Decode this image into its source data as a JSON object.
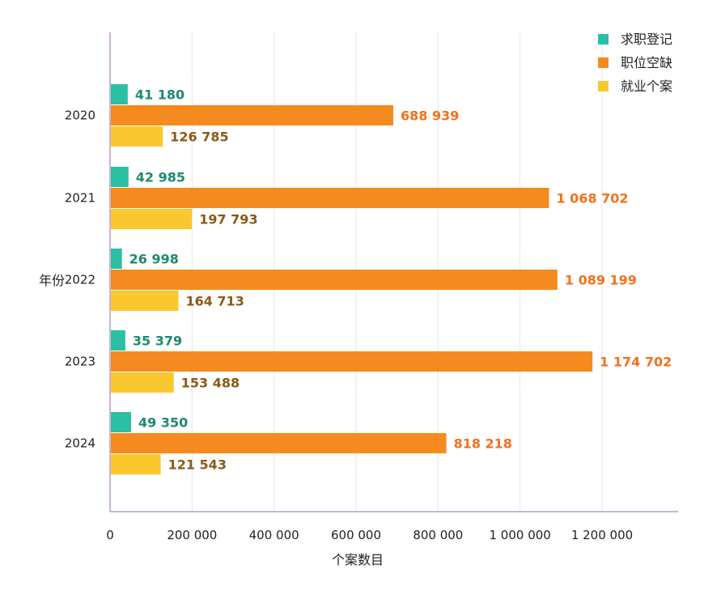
{
  "chart_data": {
    "type": "bar",
    "orientation": "horizontal",
    "categories": [
      "2020",
      "2021",
      "2022",
      "2023",
      "2024"
    ],
    "series": [
      {
        "name": "求职登记",
        "color": "#2bbfa4",
        "label_color": "#1e8a72",
        "values": [
          41180,
          42985,
          26998,
          35379,
          49350
        ],
        "labels": [
          "41 180",
          "42 985",
          "26 998",
          "35 379",
          "49 350"
        ]
      },
      {
        "name": "职位空缺",
        "color": "#f58a1f",
        "label_color": "#f2711c",
        "values": [
          688939,
          1068702,
          1089199,
          1174702,
          818218
        ],
        "labels": [
          "688 939",
          "1 068 702",
          "1 089 199",
          "1 174 702",
          "818 218"
        ]
      },
      {
        "name": "就业个案",
        "color": "#fbc72f",
        "label_color": "#8b5a14",
        "values": [
          126785,
          197793,
          164713,
          153488,
          121543
        ],
        "labels": [
          "126 785",
          "197 793",
          "164 713",
          "153 488",
          "121 543"
        ]
      }
    ],
    "xlabel": "个案数目",
    "ylabel": "年份",
    "xlim": [
      0,
      1380000
    ],
    "xticks": [
      0,
      200000,
      400000,
      600000,
      800000,
      1000000,
      1200000
    ],
    "xtick_labels": [
      "0",
      "200 000",
      "400 000",
      "600 000",
      "800 000",
      "1 000 000",
      "1 200 000"
    ],
    "grid": true,
    "legend_position": "top-right",
    "axis_color": "#b89bc9",
    "grid_color": "#e6e6ea"
  }
}
